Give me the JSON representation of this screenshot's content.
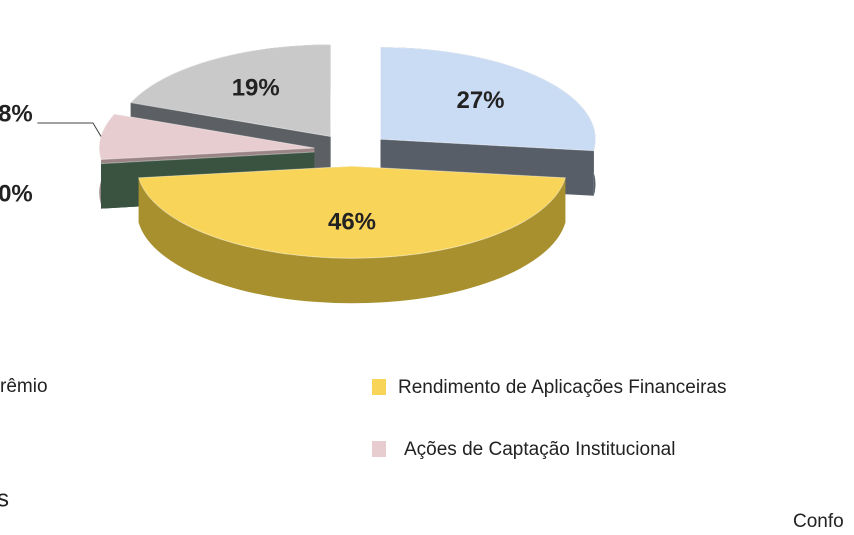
{
  "chart_data": {
    "type": "pie3d",
    "categories": [
      null,
      "Rendimento de Aplicações Financeiras",
      null,
      "Ações de Captação Institucional",
      null
    ],
    "values": [
      27,
      46,
      0,
      8,
      19
    ],
    "value_labels": [
      "27%",
      "46%",
      "0%",
      "8%",
      "19%"
    ],
    "colors": [
      "#cadcf4",
      "#f8d458",
      "#4d6b52",
      "#e8cdd0",
      "#c9c9c9"
    ],
    "side_colors": [
      "#575e68",
      "#a8902e",
      "#3a5240",
      "#9a8486",
      "#5c5f63"
    ],
    "legend_fragment": "rêmio"
  },
  "page_texts": [
    "s",
    "Confo"
  ]
}
